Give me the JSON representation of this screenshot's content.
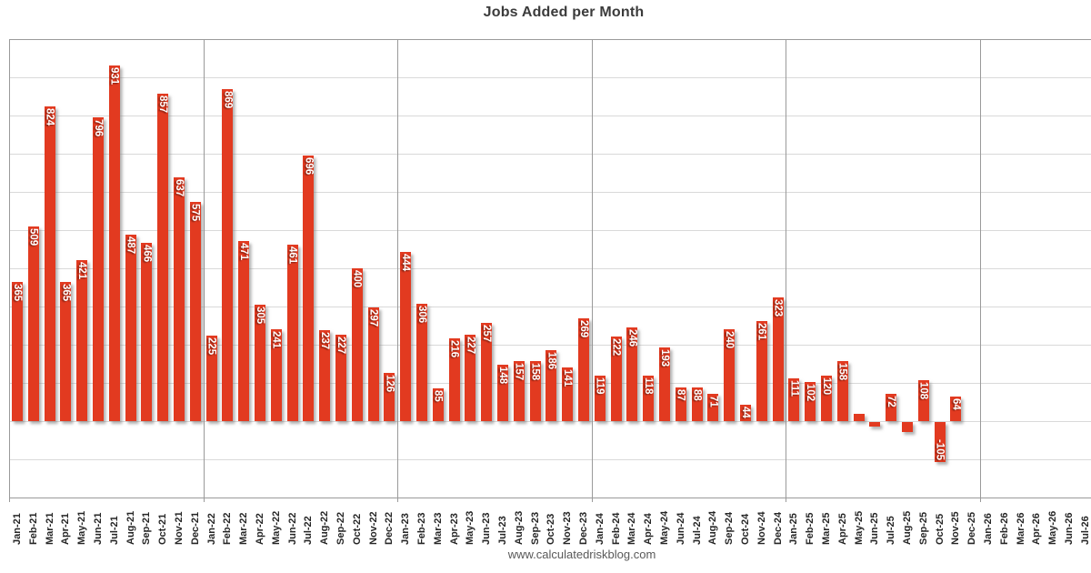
{
  "title": "Jobs Added per Month",
  "footer": {
    "source_text": "www.calculatedriskblog.com"
  },
  "chart_data": {
    "type": "bar",
    "title": "Jobs Added per Month",
    "xlabel": "",
    "ylabel": "",
    "ylim": [
      -200,
      1000
    ],
    "gridline_step": 100,
    "grid": true,
    "legend": "none",
    "y_axis_tick_labels_visible": false,
    "bar_color": "#e23a20",
    "bar_value_label_color": "#ffffff",
    "categories": [
      "Jan-21",
      "Feb-21",
      "Mar-21",
      "Apr-21",
      "May-21",
      "Jun-21",
      "Jul-21",
      "Aug-21",
      "Sep-21",
      "Oct-21",
      "Nov-21",
      "Dec-21",
      "Jan-22",
      "Feb-22",
      "Mar-22",
      "Apr-22",
      "May-22",
      "Jun-22",
      "Jul-22",
      "Aug-22",
      "Sep-22",
      "Oct-22",
      "Nov-22",
      "Dec-22",
      "Jan-23",
      "Feb-23",
      "Mar-23",
      "Apr-23",
      "May-23",
      "Jun-23",
      "Jul-23",
      "Aug-23",
      "Sep-23",
      "Oct-23",
      "Nov-23",
      "Dec-23",
      "Jan-24",
      "Feb-24",
      "Mar-24",
      "Apr-24",
      "May-24",
      "Jun-24",
      "Jul-24",
      "Aug-24",
      "Sep-24",
      "Oct-24",
      "Nov-24",
      "Dec-24",
      "Jan-25",
      "Feb-25",
      "Mar-25",
      "Apr-25",
      "May-25",
      "Jun-25",
      "Jul-25",
      "Aug-25",
      "Sep-25",
      "Oct-25",
      "Nov-25",
      "Dec-25",
      "Jan-26",
      "Feb-26",
      "Mar-26",
      "Apr-26",
      "May-26",
      "Jun-26",
      "Jul-26"
    ],
    "values": [
      365,
      509,
      824,
      365,
      421,
      796,
      931,
      487,
      466,
      857,
      637,
      575,
      225,
      869,
      471,
      305,
      241,
      461,
      696,
      237,
      227,
      400,
      297,
      126,
      444,
      306,
      85,
      216,
      227,
      257,
      148,
      157,
      158,
      186,
      141,
      269,
      119,
      222,
      246,
      118,
      193,
      87,
      88,
      71,
      240,
      44,
      261,
      323,
      111,
      102,
      120,
      158,
      19,
      -13,
      72,
      -26,
      108,
      -105,
      64,
      null,
      null,
      null,
      null,
      null,
      null,
      null,
      null
    ],
    "bar_labels": [
      "365",
      "509",
      "824",
      "365",
      "421",
      "796",
      "931",
      "487",
      "466",
      "857",
      "637",
      "575",
      "225",
      "869",
      "471",
      "305",
      "241",
      "461",
      "696",
      "237",
      "227",
      "400",
      "297",
      "126",
      "444",
      "306",
      "85",
      "216",
      "227",
      "257",
      "148",
      "157",
      "158",
      "186",
      "141",
      "269",
      "119",
      "222",
      "246",
      "118",
      "193",
      "87",
      "88",
      "71",
      "240",
      "44",
      "261",
      "323",
      "111",
      "102",
      "120",
      "158",
      "",
      "",
      "72",
      "",
      "108",
      "-105",
      "64",
      "",
      "",
      "",
      "",
      "",
      "",
      "",
      ""
    ],
    "year_separator_before_categories": [
      "Jan-21",
      "Jan-22",
      "Jan-23",
      "Jan-24",
      "Jan-25",
      "Jan-26"
    ]
  }
}
